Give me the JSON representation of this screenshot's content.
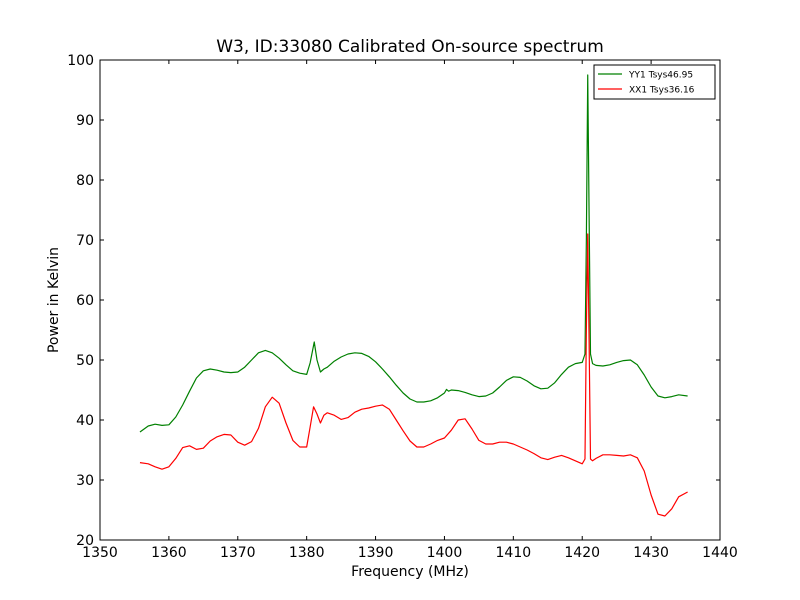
{
  "chart_data": {
    "type": "line",
    "title": "W3, ID:33080 Calibrated On-source spectrum",
    "xlabel": "Frequency (MHz)",
    "ylabel": "Power in Kelvin",
    "xlim": [
      1350,
      1440
    ],
    "ylim": [
      20,
      100
    ],
    "xticks": [
      "1350",
      "1360",
      "1370",
      "1380",
      "1390",
      "1400",
      "1410",
      "1420",
      "1430",
      "1440"
    ],
    "yticks": [
      "20",
      "30",
      "40",
      "50",
      "60",
      "70",
      "80",
      "90",
      "100"
    ],
    "grid": false,
    "legend_position": "top-right",
    "series": [
      {
        "name": "YY1 Tsys46.95",
        "color": "#008000",
        "x": [
          1355.8,
          1357,
          1358,
          1359,
          1360,
          1361,
          1362,
          1363,
          1364,
          1365,
          1366,
          1367,
          1368,
          1369,
          1370,
          1371,
          1372,
          1373,
          1374,
          1375,
          1376,
          1377,
          1378,
          1379,
          1380,
          1380.5,
          1381.1,
          1381.5,
          1382,
          1382.5,
          1383,
          1384,
          1385,
          1386,
          1387,
          1388,
          1389,
          1390,
          1391,
          1392,
          1393,
          1394,
          1395,
          1396,
          1397,
          1398,
          1399,
          1400,
          1400.3,
          1400.6,
          1401,
          1402,
          1403,
          1404,
          1405,
          1406,
          1407,
          1408,
          1409,
          1410,
          1411,
          1412,
          1413,
          1414,
          1415,
          1416,
          1417,
          1418,
          1419,
          1420,
          1420.4,
          1420.6,
          1420.8,
          1421.0,
          1421.2,
          1421.5,
          1422,
          1423,
          1424,
          1425,
          1426,
          1427,
          1428,
          1429,
          1430,
          1431,
          1432,
          1433,
          1434,
          1435.3
        ],
        "y": [
          38,
          39,
          39.3,
          39.1,
          39.2,
          40.5,
          42.5,
          44.8,
          47,
          48.2,
          48.5,
          48.3,
          48,
          47.9,
          48,
          48.8,
          50,
          51.2,
          51.6,
          51.2,
          50.3,
          49.2,
          48.2,
          47.8,
          47.6,
          49.5,
          53,
          50,
          48,
          48.5,
          48.8,
          49.8,
          50.5,
          51,
          51.2,
          51.1,
          50.6,
          49.7,
          48.5,
          47.2,
          45.8,
          44.5,
          43.5,
          43,
          43,
          43.2,
          43.7,
          44.5,
          45.1,
          44.8,
          45,
          44.9,
          44.6,
          44.2,
          43.9,
          44,
          44.5,
          45.5,
          46.6,
          47.2,
          47.1,
          46.5,
          45.7,
          45.2,
          45.3,
          46.2,
          47.6,
          48.8,
          49.4,
          49.6,
          51,
          70,
          97.5,
          74,
          51,
          49.4,
          49.1,
          49,
          49.2,
          49.6,
          49.9,
          50,
          49.2,
          47.5,
          45.5,
          44,
          43.7,
          43.9,
          44.2,
          44
        ]
      },
      {
        "name": "XX1 Tsys36.16",
        "color": "#ff0000",
        "x": [
          1355.8,
          1357,
          1358,
          1359,
          1360,
          1361,
          1362,
          1363,
          1364,
          1365,
          1366,
          1367,
          1368,
          1369,
          1370,
          1371,
          1372,
          1373,
          1374,
          1375,
          1376,
          1377,
          1378,
          1379,
          1380,
          1380.5,
          1381,
          1381.5,
          1382,
          1382.5,
          1383,
          1384,
          1385,
          1386,
          1387,
          1388,
          1389,
          1390,
          1391,
          1392,
          1393,
          1394,
          1395,
          1396,
          1397,
          1398,
          1399,
          1400,
          1401,
          1402,
          1403,
          1404,
          1405,
          1406,
          1407,
          1408,
          1409,
          1410,
          1411,
          1412,
          1413,
          1414,
          1415,
          1416,
          1417,
          1418,
          1419,
          1420,
          1420.4,
          1420.6,
          1420.8,
          1421.0,
          1421.2,
          1421.5,
          1422,
          1423,
          1424,
          1425,
          1426,
          1427,
          1428,
          1429,
          1430,
          1431,
          1432,
          1433,
          1434,
          1435.3
        ],
        "y": [
          32.9,
          32.7,
          32.2,
          31.8,
          32.2,
          33.6,
          35.4,
          35.7,
          35.1,
          35.3,
          36.5,
          37.2,
          37.6,
          37.5,
          36.3,
          35.8,
          36.4,
          38.6,
          42.2,
          43.8,
          42.8,
          39.5,
          36.6,
          35.5,
          35.5,
          38.8,
          42.2,
          41,
          39.5,
          40.8,
          41.2,
          40.8,
          40.1,
          40.4,
          41.3,
          41.8,
          42,
          42.3,
          42.5,
          41.8,
          40,
          38.2,
          36.5,
          35.5,
          35.5,
          36,
          36.6,
          37,
          38.3,
          40,
          40.2,
          38.5,
          36.6,
          36,
          36,
          36.3,
          36.3,
          36,
          35.5,
          35,
          34.4,
          33.7,
          33.4,
          33.8,
          34.1,
          33.7,
          33.2,
          32.7,
          33.5,
          55,
          71,
          53,
          33.5,
          33.2,
          33.6,
          34.2,
          34.2,
          34.1,
          34,
          34.2,
          33.7,
          31.5,
          27.5,
          24.3,
          24,
          25.2,
          27.2,
          28
        ]
      }
    ]
  }
}
